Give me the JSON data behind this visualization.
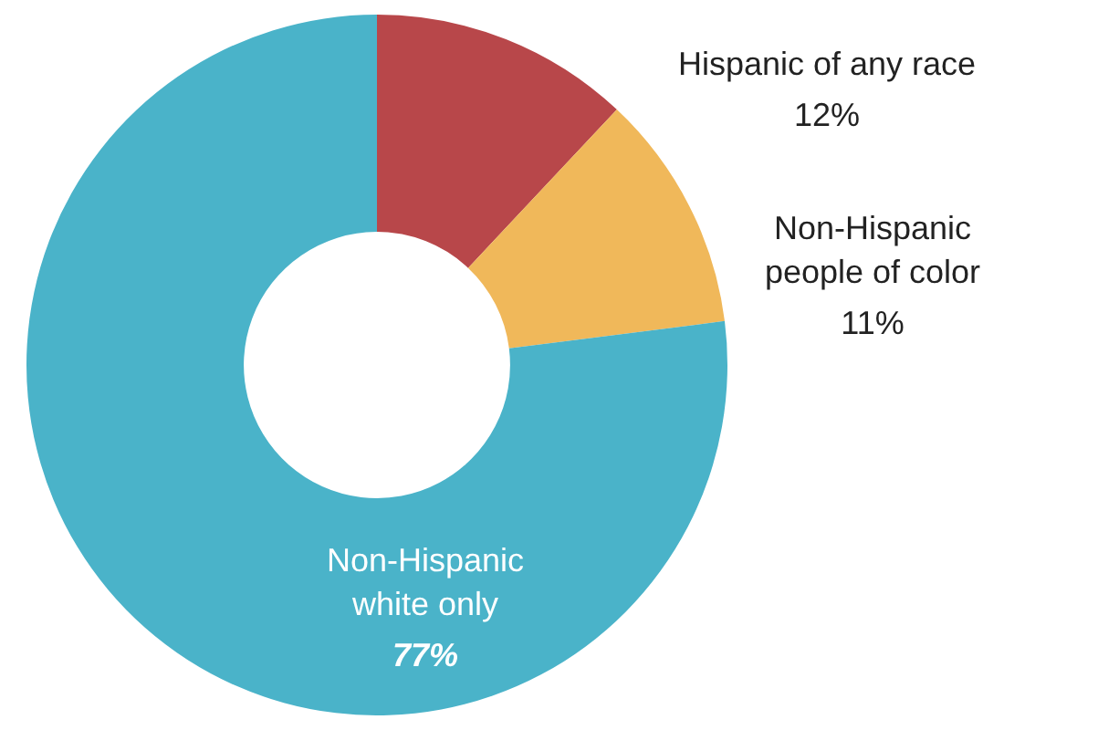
{
  "chart_data": {
    "type": "donut",
    "categories": [
      "Hispanic of any race",
      "Non-Hispanic people of color",
      "Non-Hispanic white only"
    ],
    "values": [
      12,
      11,
      77
    ],
    "value_labels": [
      "12%",
      "11%",
      "77%"
    ],
    "colors": [
      "#b8474a",
      "#f0b85a",
      "#4ab3c9"
    ],
    "legend": false
  }
}
